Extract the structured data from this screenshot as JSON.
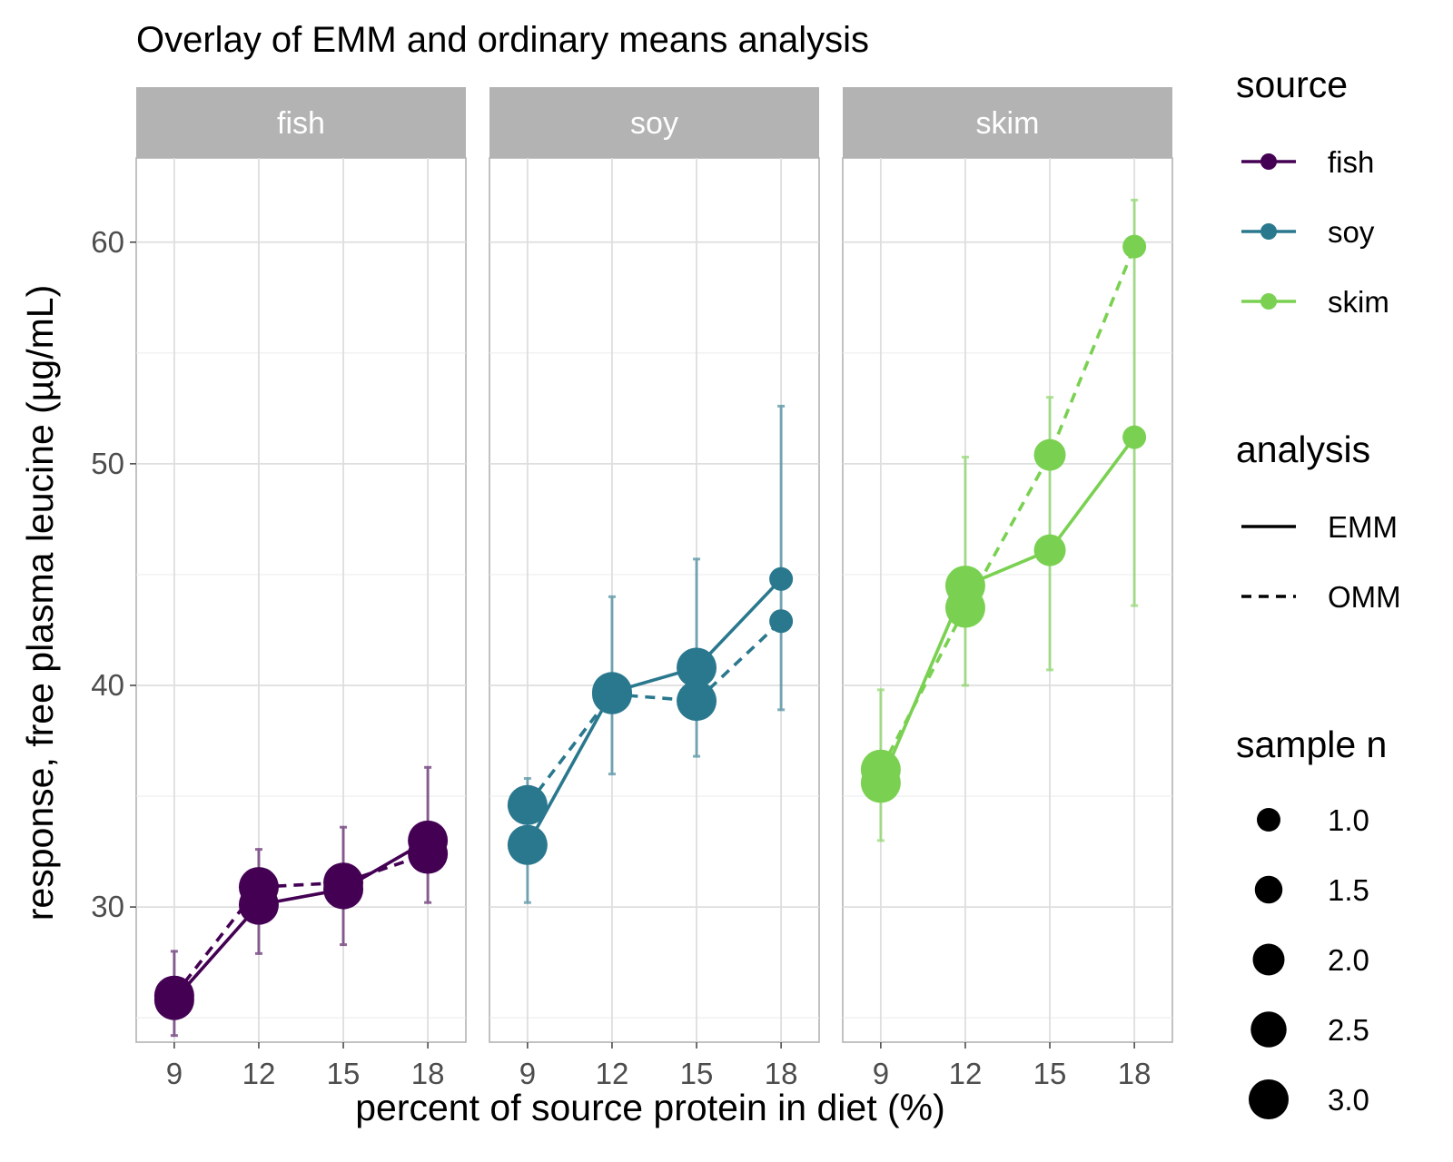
{
  "chart_data": {
    "type": "line",
    "title": "Overlay of EMM and ordinary means analysis",
    "xlabel": "percent of source protein in diet (%)",
    "ylabel": "response, free plasma leucine (µg/mL)",
    "x": [
      9,
      12,
      15,
      18
    ],
    "x_ticks": [
      "9",
      "12",
      "15",
      "18"
    ],
    "ylim": [
      23.9,
      63.8
    ],
    "y_ticks": [
      30,
      40,
      50,
      60
    ],
    "y_tick_labels": [
      "30",
      "40",
      "50",
      "60"
    ],
    "grid": true,
    "legend_position": "right",
    "facets": [
      "fish",
      "soy",
      "skim"
    ],
    "colors": {
      "fish": "#440154",
      "soy": "#2a788e",
      "skim": "#7ad151"
    },
    "series": [
      {
        "source": "fish",
        "analysis": "EMM",
        "values": [
          25.8,
          30.1,
          30.8,
          33.0
        ],
        "n": [
          3,
          3,
          3,
          3
        ],
        "ci_low": [
          24.2,
          27.9,
          28.3,
          30.2
        ],
        "ci_high": [
          28.0,
          32.6,
          33.6,
          36.3
        ]
      },
      {
        "source": "fish",
        "analysis": "OMM",
        "values": [
          26.0,
          30.9,
          31.1,
          32.4
        ],
        "n": [
          3,
          3,
          3,
          3
        ]
      },
      {
        "source": "soy",
        "analysis": "EMM",
        "values": [
          32.8,
          39.7,
          40.8,
          44.8
        ],
        "n": [
          3,
          3,
          3,
          1
        ],
        "ci_low": [
          30.2,
          36.0,
          36.8,
          38.9
        ],
        "ci_high": [
          35.8,
          44.0,
          45.7,
          52.6
        ]
      },
      {
        "source": "soy",
        "analysis": "OMM",
        "values": [
          34.6,
          39.6,
          39.3,
          42.9
        ],
        "n": [
          3,
          3,
          3,
          1
        ]
      },
      {
        "source": "skim",
        "analysis": "EMM",
        "values": [
          35.6,
          44.5,
          46.1,
          51.2
        ],
        "n": [
          3,
          3,
          2,
          1
        ],
        "ci_low": [
          33.0,
          40.0,
          40.7,
          43.6
        ],
        "ci_high": [
          39.8,
          50.3,
          53.0,
          61.9
        ]
      },
      {
        "source": "skim",
        "analysis": "OMM",
        "values": [
          36.2,
          43.5,
          50.4,
          59.8
        ],
        "n": [
          3,
          3,
          2,
          1
        ]
      }
    ],
    "legends": {
      "source": {
        "title": "source",
        "items": [
          "fish",
          "soy",
          "skim"
        ]
      },
      "analysis": {
        "title": "analysis",
        "items": [
          "EMM",
          "OMM"
        ]
      },
      "sample_n": {
        "title": "sample n",
        "items": [
          "1.0",
          "1.5",
          "2.0",
          "2.5",
          "3.0"
        ]
      }
    }
  }
}
